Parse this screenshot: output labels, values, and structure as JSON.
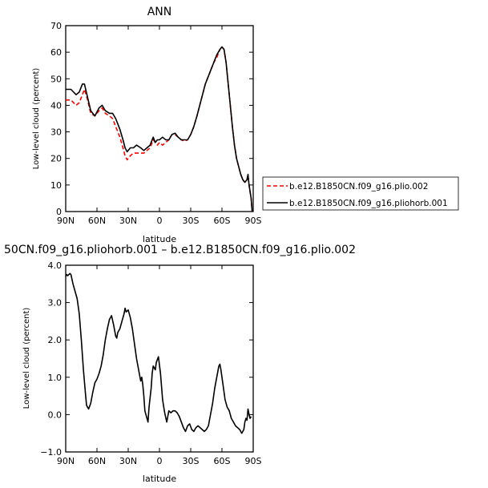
{
  "chart_data": [
    {
      "type": "line",
      "title": "ANN",
      "xlabel": "latitude",
      "ylabel": "Low-level cloud (percent)",
      "xlim": [
        90,
        -90
      ],
      "ylim": [
        0,
        70
      ],
      "x_ticks": [
        90,
        60,
        30,
        0,
        -30,
        -60,
        -90
      ],
      "x_tick_labels": [
        "90N",
        "60N",
        "30N",
        "0",
        "30S",
        "60S",
        "90S"
      ],
      "y_ticks": [
        0,
        10,
        20,
        30,
        40,
        50,
        60,
        70
      ],
      "y_tick_labels": [
        "0",
        "10",
        "20",
        "30",
        "40",
        "50",
        "60",
        "70"
      ],
      "legend_placement": "outside-right",
      "grid": false,
      "series": [
        {
          "name": "b.e12.B1850CN.f09_g16.plio.002",
          "color": "#ff0000",
          "style": "dashed",
          "points": [
            [
              90,
              42
            ],
            [
              85,
              42
            ],
            [
              80,
              40
            ],
            [
              77,
              41
            ],
            [
              74,
              44
            ],
            [
              72,
              46
            ],
            [
              69,
              42
            ],
            [
              66,
              37
            ],
            [
              62,
              36
            ],
            [
              58,
              38
            ],
            [
              55,
              39
            ],
            [
              52,
              37
            ],
            [
              48,
              36
            ],
            [
              45,
              35
            ],
            [
              42,
              32
            ],
            [
              38,
              28
            ],
            [
              35,
              24
            ],
            [
              33,
              21
            ],
            [
              31,
              19.5
            ],
            [
              28,
              21
            ],
            [
              25,
              22
            ],
            [
              22,
              22
            ],
            [
              18,
              22
            ],
            [
              15,
              22
            ],
            [
              12,
              23
            ],
            [
              9,
              24
            ],
            [
              6,
              27
            ],
            [
              4,
              26
            ],
            [
              2,
              25
            ],
            [
              0,
              26
            ],
            [
              -3,
              25
            ],
            [
              -6,
              26
            ],
            [
              -9,
              27
            ],
            [
              -12,
              29
            ],
            [
              -15,
              29
            ],
            [
              -18,
              28
            ],
            [
              -21,
              27
            ],
            [
              -24,
              26.5
            ],
            [
              -27,
              27
            ],
            [
              -30,
              29
            ],
            [
              -33,
              32
            ],
            [
              -36,
              36
            ],
            [
              -40,
              42
            ],
            [
              -44,
              48
            ],
            [
              -48,
              52
            ],
            [
              -52,
              56
            ],
            [
              -55,
              58
            ],
            [
              -58,
              61
            ],
            [
              -60,
              62
            ],
            [
              -62,
              61
            ],
            [
              -64,
              56
            ],
            [
              -66,
              48
            ],
            [
              -68,
              40
            ],
            [
              -70,
              32
            ],
            [
              -72,
              25
            ],
            [
              -74,
              20
            ],
            [
              -76,
              17
            ],
            [
              -78,
              14
            ],
            [
              -80,
              12
            ],
            [
              -82,
              11
            ],
            [
              -84,
              12
            ],
            [
              -85,
              13.5
            ],
            [
              -86,
              10
            ],
            [
              -88,
              5
            ],
            [
              -89,
              0
            ]
          ]
        },
        {
          "name": "b.e12.B1850CN.f09_g16.pliohorb.001",
          "color": "#000000",
          "style": "solid",
          "points": [
            [
              90,
              46
            ],
            [
              85,
              46
            ],
            [
              80,
              44
            ],
            [
              77,
              45
            ],
            [
              74,
              48
            ],
            [
              72,
              48
            ],
            [
              69,
              43
            ],
            [
              66,
              38
            ],
            [
              62,
              36
            ],
            [
              58,
              39
            ],
            [
              55,
              40
            ],
            [
              52,
              38
            ],
            [
              48,
              37
            ],
            [
              45,
              37
            ],
            [
              42,
              35
            ],
            [
              38,
              31
            ],
            [
              35,
              27
            ],
            [
              33,
              24
            ],
            [
              31,
              22.5
            ],
            [
              28,
              24
            ],
            [
              25,
              24
            ],
            [
              22,
              25
            ],
            [
              18,
              24
            ],
            [
              15,
              23
            ],
            [
              12,
              24
            ],
            [
              9,
              25
            ],
            [
              6,
              28
            ],
            [
              4,
              26
            ],
            [
              2,
              27
            ],
            [
              0,
              27
            ],
            [
              -3,
              28
            ],
            [
              -6,
              27
            ],
            [
              -9,
              27
            ],
            [
              -12,
              29
            ],
            [
              -15,
              29.5
            ],
            [
              -18,
              28
            ],
            [
              -21,
              27
            ],
            [
              -24,
              27
            ],
            [
              -27,
              27
            ],
            [
              -30,
              29
            ],
            [
              -33,
              32
            ],
            [
              -36,
              36
            ],
            [
              -40,
              42
            ],
            [
              -44,
              48
            ],
            [
              -48,
              52
            ],
            [
              -52,
              56
            ],
            [
              -55,
              59
            ],
            [
              -58,
              61
            ],
            [
              -60,
              62
            ],
            [
              -62,
              61
            ],
            [
              -64,
              56
            ],
            [
              -66,
              48
            ],
            [
              -68,
              40
            ],
            [
              -70,
              32
            ],
            [
              -72,
              25
            ],
            [
              -74,
              20
            ],
            [
              -76,
              17
            ],
            [
              -78,
              14
            ],
            [
              -80,
              12
            ],
            [
              -82,
              11
            ],
            [
              -84,
              12
            ],
            [
              -85,
              14
            ],
            [
              -86,
              10
            ],
            [
              -88,
              5
            ],
            [
              -89,
              0
            ]
          ]
        }
      ]
    },
    {
      "type": "line",
      "title": "50CN.f09_g16.pliohorb.001 – b.e12.B1850CN.f09_g16.plio.002",
      "xlabel": "latitude",
      "ylabel": "Low-level cloud (percent)",
      "xlim": [
        90,
        -90
      ],
      "ylim": [
        -1.0,
        4.0
      ],
      "x_ticks": [
        90,
        60,
        30,
        0,
        -30,
        -60,
        -90
      ],
      "x_tick_labels": [
        "90N",
        "60N",
        "30N",
        "0",
        "30S",
        "60S",
        "90S"
      ],
      "y_ticks": [
        -1.0,
        0.0,
        1.0,
        2.0,
        3.0,
        4.0
      ],
      "y_tick_labels": [
        "−1.0",
        "0.0",
        "1.0",
        "2.0",
        "3.0",
        "4.0"
      ],
      "grid": false,
      "series": [
        {
          "color": "#000000",
          "style": "solid",
          "points": [
            [
              90,
              3.7
            ],
            [
              89,
              3.75
            ],
            [
              88,
              3.72
            ],
            [
              86,
              3.78
            ],
            [
              85,
              3.75
            ],
            [
              83,
              3.5
            ],
            [
              81,
              3.3
            ],
            [
              79,
              3.1
            ],
            [
              77,
              2.7
            ],
            [
              75,
              2.0
            ],
            [
              73,
              1.2
            ],
            [
              71,
              0.55
            ],
            [
              70,
              0.25
            ],
            [
              68,
              0.15
            ],
            [
              66,
              0.3
            ],
            [
              64,
              0.6
            ],
            [
              62,
              0.85
            ],
            [
              60,
              0.95
            ],
            [
              58,
              1.1
            ],
            [
              56,
              1.3
            ],
            [
              54,
              1.6
            ],
            [
              52,
              2.0
            ],
            [
              50,
              2.3
            ],
            [
              48,
              2.55
            ],
            [
              46,
              2.65
            ],
            [
              44,
              2.4
            ],
            [
              42,
              2.1
            ],
            [
              41,
              2.05
            ],
            [
              40,
              2.2
            ],
            [
              38,
              2.3
            ],
            [
              36,
              2.5
            ],
            [
              34,
              2.7
            ],
            [
              33,
              2.85
            ],
            [
              32,
              2.75
            ],
            [
              30,
              2.8
            ],
            [
              28,
              2.6
            ],
            [
              26,
              2.3
            ],
            [
              24,
              1.9
            ],
            [
              22,
              1.5
            ],
            [
              20,
              1.2
            ],
            [
              18,
              0.9
            ],
            [
              17,
              1.0
            ],
            [
              16,
              0.8
            ],
            [
              15,
              0.5
            ],
            [
              14,
              0.1
            ],
            [
              12,
              -0.1
            ],
            [
              11,
              -0.2
            ],
            [
              10,
              0.2
            ],
            [
              8,
              0.7
            ],
            [
              7,
              1.1
            ],
            [
              6,
              1.3
            ],
            [
              4,
              1.2
            ],
            [
              3,
              1.4
            ],
            [
              1,
              1.55
            ],
            [
              -1,
              1.1
            ],
            [
              -3,
              0.4
            ],
            [
              -5,
              0.05
            ],
            [
              -7,
              -0.2
            ],
            [
              -9,
              0.1
            ],
            [
              -11,
              0.05
            ],
            [
              -13,
              0.1
            ],
            [
              -15,
              0.1
            ],
            [
              -17,
              0.05
            ],
            [
              -19,
              -0.05
            ],
            [
              -21,
              -0.2
            ],
            [
              -23,
              -0.35
            ],
            [
              -25,
              -0.45
            ],
            [
              -27,
              -0.3
            ],
            [
              -29,
              -0.25
            ],
            [
              -31,
              -0.4
            ],
            [
              -33,
              -0.45
            ],
            [
              -35,
              -0.35
            ],
            [
              -37,
              -0.3
            ],
            [
              -39,
              -0.35
            ],
            [
              -41,
              -0.4
            ],
            [
              -43,
              -0.45
            ],
            [
              -45,
              -0.4
            ],
            [
              -47,
              -0.3
            ],
            [
              -49,
              0.0
            ],
            [
              -51,
              0.3
            ],
            [
              -53,
              0.7
            ],
            [
              -55,
              1.0
            ],
            [
              -57,
              1.3
            ],
            [
              -58,
              1.35
            ],
            [
              -59,
              1.2
            ],
            [
              -61,
              0.8
            ],
            [
              -63,
              0.4
            ],
            [
              -65,
              0.2
            ],
            [
              -67,
              0.1
            ],
            [
              -69,
              -0.1
            ],
            [
              -71,
              -0.2
            ],
            [
              -73,
              -0.3
            ],
            [
              -75,
              -0.35
            ],
            [
              -77,
              -0.4
            ],
            [
              -79,
              -0.5
            ],
            [
              -81,
              -0.4
            ],
            [
              -82,
              -0.2
            ],
            [
              -83,
              -0.1
            ],
            [
              -84,
              -0.15
            ],
            [
              -85,
              0.15
            ],
            [
              -86,
              0.0
            ],
            [
              -87,
              -0.1
            ],
            [
              -88,
              -0.05
            ]
          ]
        }
      ]
    }
  ]
}
